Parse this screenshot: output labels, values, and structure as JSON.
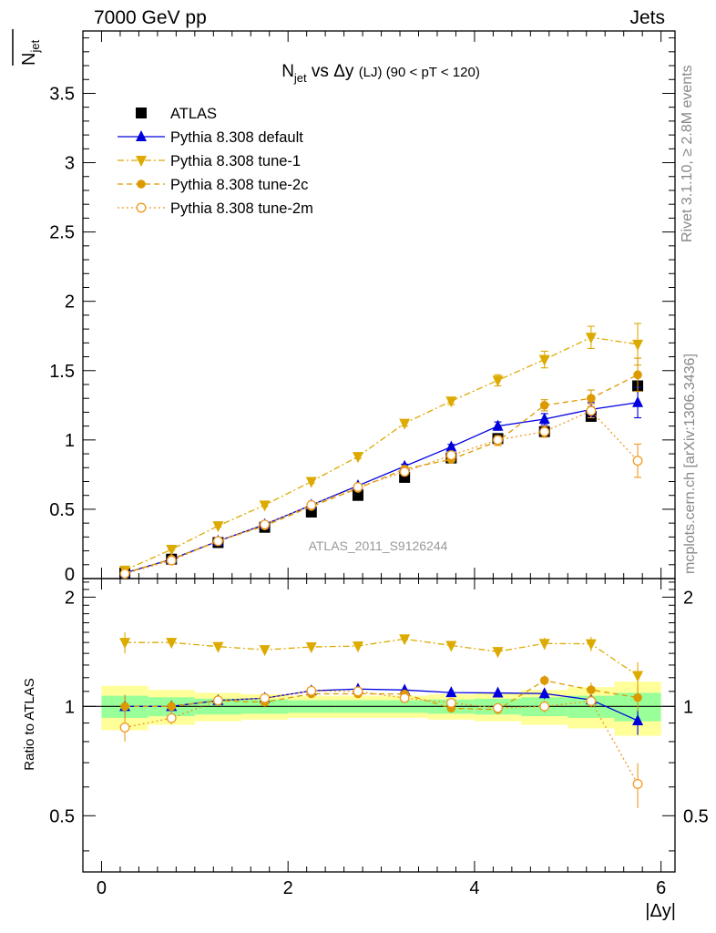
{
  "header": {
    "left": "7000 GeV pp",
    "right": "Jets"
  },
  "side_labels": {
    "rivet": "Rivet 3.1.10, ≥ 2.8M events",
    "mcplots": "mcplots.cern.ch [arXiv:1306.3436]"
  },
  "chart_data": {
    "type": "line",
    "title": "N_jet vs Δy (LJ) (90 < pT < 120)",
    "title_parts": {
      "main": "N",
      "sub": "jet",
      "rest": " vs Δy ",
      "small": "(LJ) (90 < pT < 120)"
    },
    "watermark": "ATLAS_2011_S9126244",
    "xlabel": "|Δy|",
    "ylabel": "N_jet",
    "ylabel_parts": {
      "main": "N",
      "sub": "jet"
    },
    "ratio_ylabel": "Ratio to ATLAS",
    "xlim": [
      -0.2,
      6.15
    ],
    "ylim": [
      0,
      3.95
    ],
    "ratio_ylim": [
      0.35,
      2.25
    ],
    "xticks": [
      0,
      2,
      4,
      6
    ],
    "xtick_labels": [
      "0",
      "2",
      "4",
      "6"
    ],
    "yticks": [
      0,
      0.5,
      1,
      1.5,
      2,
      2.5,
      3,
      3.5
    ],
    "ytick_labels": [
      "0",
      "0.5",
      "1",
      "1.5",
      "2",
      "2.5",
      "3",
      "3.5"
    ],
    "ratio_yticks": [
      0.5,
      1,
      2
    ],
    "ratio_ytick_labels": [
      "0.5",
      "1",
      "2"
    ],
    "x": [
      0.25,
      0.75,
      1.25,
      1.75,
      2.25,
      2.75,
      3.25,
      3.75,
      4.25,
      4.75,
      5.25,
      5.75
    ],
    "data": {
      "name": "ATLAS",
      "color": "#000000",
      "values": [
        0.04,
        0.14,
        0.26,
        0.37,
        0.48,
        0.6,
        0.73,
        0.87,
        1.01,
        1.06,
        1.17,
        1.39
      ],
      "errors": [
        0.005,
        0.008,
        0.01,
        0.012,
        0.015,
        0.015,
        0.018,
        0.02,
        0.025,
        0.03,
        0.035,
        0.05
      ]
    },
    "series": [
      {
        "name": "Pythia 8.308 default",
        "color": "#0000dd",
        "marker": "triangle-up",
        "dash": "",
        "values": [
          0.04,
          0.14,
          0.27,
          0.39,
          0.53,
          0.67,
          0.81,
          0.95,
          1.1,
          1.15,
          1.22,
          1.27
        ],
        "errors": [
          0.003,
          0.005,
          0.006,
          0.008,
          0.01,
          0.012,
          0.015,
          0.018,
          0.03,
          0.04,
          0.05,
          0.11
        ]
      },
      {
        "name": "Pythia 8.308 tune-1",
        "color": "#ddaa00",
        "marker": "triangle-down",
        "dash": "7,3,2,3",
        "values": [
          0.06,
          0.21,
          0.38,
          0.53,
          0.7,
          0.88,
          1.12,
          1.28,
          1.43,
          1.58,
          1.74,
          1.69
        ],
        "errors": [
          0.004,
          0.006,
          0.008,
          0.01,
          0.012,
          0.015,
          0.02,
          0.025,
          0.04,
          0.06,
          0.08,
          0.15
        ]
      },
      {
        "name": "Pythia 8.308 tune-2c",
        "color": "#dd9900",
        "marker": "circle",
        "dash": "6,4",
        "values": [
          0.04,
          0.14,
          0.27,
          0.38,
          0.52,
          0.65,
          0.79,
          0.86,
          0.99,
          1.25,
          1.3,
          1.47
        ],
        "errors": [
          0.003,
          0.005,
          0.006,
          0.008,
          0.01,
          0.012,
          0.015,
          0.018,
          0.03,
          0.04,
          0.06,
          0.12
        ]
      },
      {
        "name": "Pythia 8.308 tune-2m",
        "color": "#ee9922",
        "marker": "circle-open",
        "dash": "2,3",
        "values": [
          0.035,
          0.13,
          0.27,
          0.39,
          0.53,
          0.66,
          0.77,
          0.89,
          1.0,
          1.06,
          1.21,
          0.85
        ],
        "errors": [
          0.003,
          0.005,
          0.006,
          0.008,
          0.01,
          0.012,
          0.015,
          0.018,
          0.03,
          0.04,
          0.05,
          0.12
        ]
      }
    ],
    "ratio_bands": {
      "green_half_width": [
        0.07,
        0.06,
        0.05,
        0.045,
        0.04,
        0.04,
        0.04,
        0.045,
        0.05,
        0.06,
        0.07,
        0.09
      ],
      "yellow_half_width": [
        0.14,
        0.11,
        0.09,
        0.08,
        0.07,
        0.07,
        0.07,
        0.08,
        0.09,
        0.11,
        0.13,
        0.17
      ],
      "green_color": "#99ff99",
      "yellow_color": "#ffff99"
    },
    "legend_position": "top-left"
  }
}
